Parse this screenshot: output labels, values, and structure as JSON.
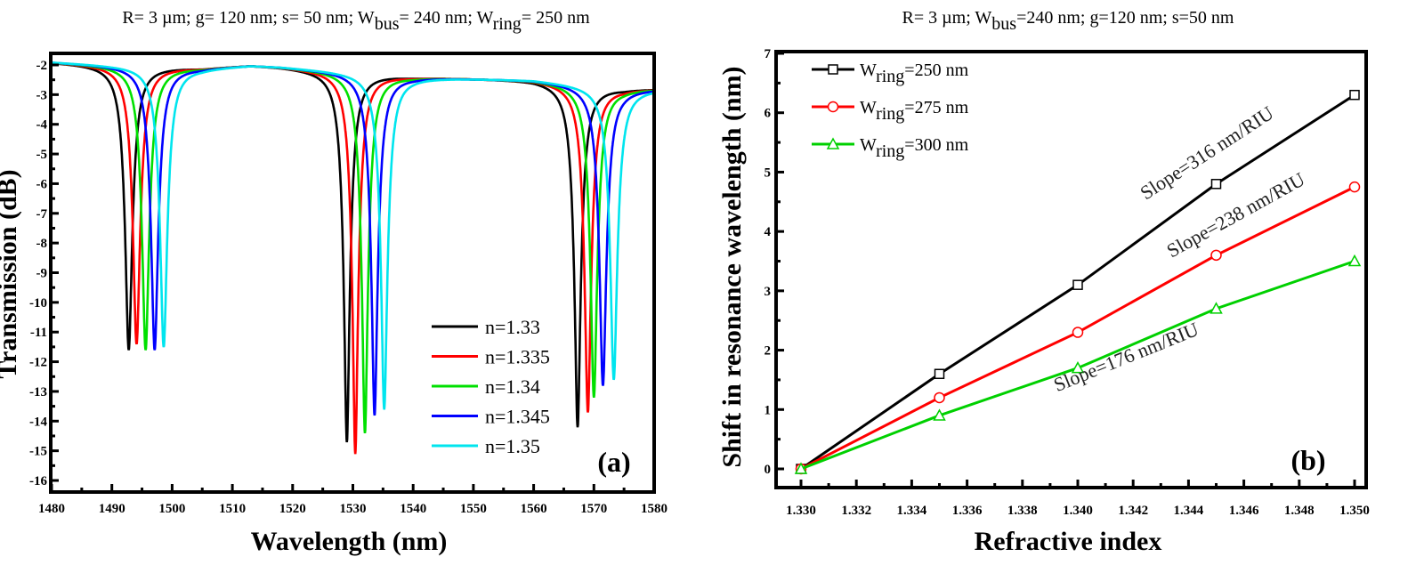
{
  "chart_data": [
    {
      "type": "line",
      "panel_label": "(a)",
      "title_parts": [
        {
          "text": "R= 3 µm; g= 120 nm; s= 50 nm; W"
        },
        {
          "sub": "bus"
        },
        {
          "text": "= 240 nm; W"
        },
        {
          "sub": "ring"
        },
        {
          "text": "= 250 nm"
        }
      ],
      "xlabel": "Wavelength (nm)",
      "ylabel": "Transmission (dB)",
      "xlim": [
        1480,
        1580
      ],
      "ylim": [
        -16,
        -1.5
      ],
      "xticks": [
        1480,
        1490,
        1500,
        1510,
        1520,
        1530,
        1540,
        1550,
        1560,
        1570,
        1580
      ],
      "yticks": [
        -2,
        -3,
        -4,
        -5,
        -6,
        -7,
        -8,
        -9,
        -10,
        -11,
        -12,
        -13,
        -14,
        -15,
        -16
      ],
      "legend_position": "lower-right",
      "baseline_dB": {
        "x": [
          1480,
          1490,
          1505,
          1513,
          1518,
          1540,
          1560,
          1575,
          1580
        ],
        "y": [
          -1.9,
          -2.0,
          -2.1,
          -2.0,
          -2.05,
          -2.4,
          -2.5,
          -2.8,
          -2.8
        ]
      },
      "series": [
        {
          "name": "n=1.33",
          "color": "#000000",
          "resonances_nm": [
            1492.8,
            1529.0,
            1567.3
          ],
          "min_dB": [
            -11.6,
            -14.7,
            -14.2
          ]
        },
        {
          "name": "n=1.335",
          "color": "#ff0000",
          "resonances_nm": [
            1494.1,
            1530.4,
            1569.0
          ],
          "min_dB": [
            -11.4,
            -15.1,
            -13.7
          ]
        },
        {
          "name": "n=1.34",
          "color": "#00e000",
          "resonances_nm": [
            1495.6,
            1532.0,
            1570.0
          ],
          "min_dB": [
            -11.6,
            -14.4,
            -13.2
          ]
        },
        {
          "name": "n=1.345",
          "color": "#0000ff",
          "resonances_nm": [
            1497.1,
            1533.6,
            1571.5
          ],
          "min_dB": [
            -11.6,
            -13.8,
            -12.8
          ]
        },
        {
          "name": "n=1.35",
          "color": "#00e5ee",
          "resonances_nm": [
            1498.6,
            1535.2,
            1573.3
          ],
          "min_dB": [
            -11.5,
            -13.6,
            -12.6
          ]
        }
      ]
    },
    {
      "type": "line",
      "panel_label": "(b)",
      "title_parts": [
        {
          "text": "R= 3 µm; W"
        },
        {
          "sub": "bus"
        },
        {
          "text": "=240 nm; g=120 nm; s=50 nm"
        }
      ],
      "xlabel": "Refractive index",
      "ylabel": "Shift in resonance wavelength (nm)",
      "xlim": [
        1.3295,
        1.3505
      ],
      "ylim": [
        -0.2,
        7
      ],
      "xticks": [
        "1.330",
        "1.332",
        "1.334",
        "1.336",
        "1.338",
        "1.340",
        "1.342",
        "1.344",
        "1.346",
        "1.348",
        "1.350"
      ],
      "yticks": [
        0,
        1,
        2,
        3,
        4,
        5,
        6,
        7
      ],
      "legend_position": "top-left",
      "x": [
        1.33,
        1.335,
        1.34,
        1.345,
        1.35
      ],
      "series": [
        {
          "name_main": "W",
          "name_sub": "ring",
          "name_rest": "=250 nm",
          "color": "#000000",
          "marker": "square",
          "values": [
            0,
            1.6,
            3.1,
            4.8,
            6.3
          ]
        },
        {
          "name_main": "W",
          "name_sub": "ring",
          "name_rest": "=275 nm",
          "color": "#ff0000",
          "marker": "circle",
          "values": [
            0,
            1.2,
            2.3,
            3.6,
            4.75
          ]
        },
        {
          "name_main": "W",
          "name_sub": "ring",
          "name_rest": "=300 nm",
          "color": "#00d000",
          "marker": "triangle",
          "values": [
            0,
            0.9,
            1.7,
            2.7,
            3.5
          ]
        }
      ],
      "annotations": [
        "Slope=316 nm/RIU",
        "Slope=238 nm/RIU",
        "Slope=176 nm/RIU"
      ]
    }
  ]
}
